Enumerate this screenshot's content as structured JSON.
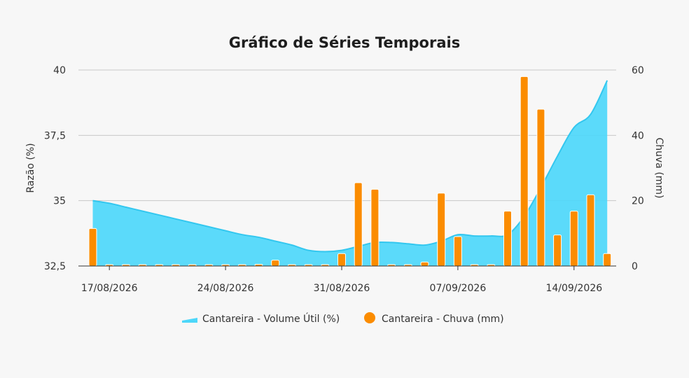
{
  "chart_data": {
    "type": "bar+area",
    "title": "Gráfico de Séries Temporais",
    "dates": [
      "16/08/2026",
      "17/08/2026",
      "18/08/2026",
      "19/08/2026",
      "20/08/2026",
      "21/08/2026",
      "22/08/2026",
      "23/08/2026",
      "24/08/2026",
      "25/08/2026",
      "26/08/2026",
      "27/08/2026",
      "28/08/2026",
      "29/08/2026",
      "30/08/2026",
      "31/08/2026",
      "01/09/2026",
      "02/09/2026",
      "03/09/2026",
      "04/09/2026",
      "05/09/2026",
      "06/09/2026",
      "07/09/2026",
      "08/09/2026",
      "09/09/2026",
      "10/09/2026",
      "11/09/2026",
      "12/09/2026",
      "13/09/2026",
      "14/09/2026",
      "15/09/2026",
      "16/09/2026"
    ],
    "x_ticks": [
      "17/08/2026",
      "24/08/2026",
      "31/08/2026",
      "07/09/2026",
      "14/09/2026"
    ],
    "y_left": {
      "label": "Razão (%)",
      "min": 32.5,
      "max": 40,
      "ticks": [
        "32,5",
        "35",
        "37,5",
        "40"
      ]
    },
    "y_right": {
      "label": "Chuva (mm)",
      "min": 0,
      "max": 60,
      "ticks": [
        "0",
        "20",
        "40",
        "60"
      ]
    },
    "grid": true,
    "legend_position": "bottom",
    "series": [
      {
        "name": "Cantareira - Volume Útil (%)",
        "type": "area",
        "axis": "left",
        "color": "#4dd7fa",
        "values": [
          35.0,
          34.9,
          34.75,
          34.6,
          34.45,
          34.3,
          34.15,
          34.0,
          33.85,
          33.7,
          33.6,
          33.45,
          33.3,
          33.1,
          33.05,
          33.1,
          33.25,
          33.4,
          33.4,
          33.35,
          33.3,
          33.45,
          33.7,
          33.65,
          33.65,
          33.7,
          34.4,
          35.5,
          36.7,
          37.8,
          38.3,
          39.6
        ]
      },
      {
        "name": "Cantareira - Chuva (mm)",
        "type": "bar",
        "axis": "right",
        "color": "#fb8c00",
        "values": [
          11.5,
          0,
          0,
          0,
          0,
          0,
          0,
          0,
          0,
          0,
          0.5,
          1.8,
          0,
          0,
          0,
          3.8,
          25.5,
          23.5,
          0,
          0,
          1.2,
          22.3,
          9.0,
          0,
          0,
          16.8,
          58.0,
          48.0,
          9.5,
          16.8,
          21.8,
          3.8
        ]
      }
    ]
  }
}
